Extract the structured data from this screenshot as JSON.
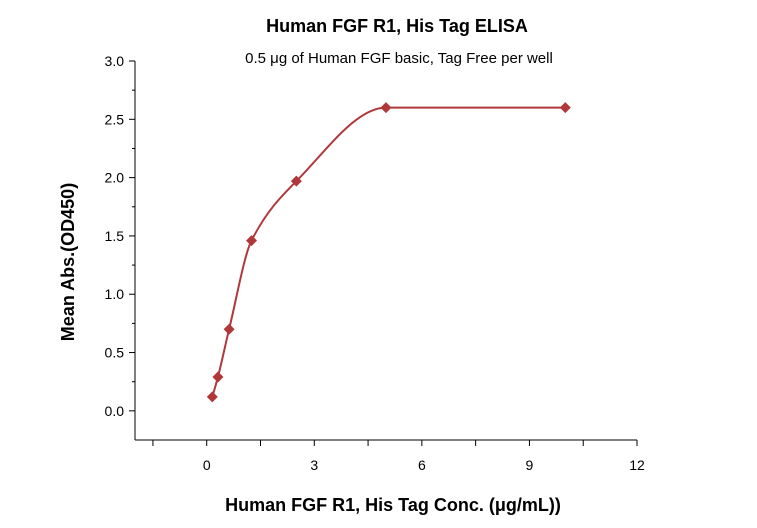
{
  "chart_data": {
    "type": "scatter",
    "title": "Human FGF R1, His Tag ELISA",
    "subtitle": "0.5 μg of Human FGF basic, Tag Free per well",
    "xlabel": "Human FGF R1, His Tag Conc. (μg/mL))",
    "ylabel": "Mean Abs.(OD450)",
    "xlim": [
      -2,
      12
    ],
    "ylim": [
      -0.25,
      3.0
    ],
    "xticks": [
      0,
      3,
      6,
      9,
      12
    ],
    "yticks": [
      0.0,
      0.5,
      1.0,
      1.5,
      2.0,
      2.5,
      3.0
    ],
    "xtick_labels": [
      "0",
      "3",
      "6",
      "9",
      "12"
    ],
    "ytick_labels": [
      "0.0",
      "0.5",
      "1.0",
      "1.5",
      "2.0",
      "2.5",
      "3.0"
    ],
    "grid": false,
    "legend": "none",
    "marker": "diamond",
    "color": "#b0383a",
    "series": [
      {
        "x": [
          0.156,
          0.313,
          0.625,
          1.25,
          2.5,
          5.0,
          10.0
        ],
        "y": [
          0.12,
          0.29,
          0.7,
          1.46,
          1.97,
          2.6,
          2.6
        ],
        "fit": "smooth-curve"
      }
    ]
  }
}
